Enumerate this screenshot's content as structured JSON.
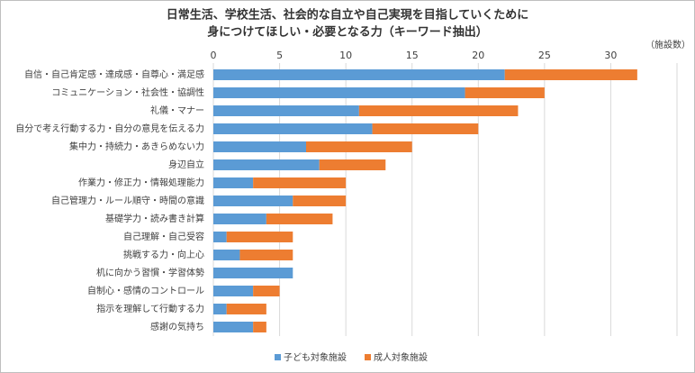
{
  "chart_data": {
    "type": "stacked-barh",
    "title": [
      "日常生活、学校生活、社会的な自立や自己実現を目指していくために",
      "身につけてほしい・必要となる力（キーワード抽出）"
    ],
    "x_label": "（施設数）",
    "categories": [
      "自信・自己肯定感・達成感・自尊心・満足感",
      "コミュニケーション・社会性・協調性",
      "礼儀・マナー",
      "自分で考え行動する力・自分の意見を伝える力",
      "集中力・持続力・あきらめない力",
      "身辺自立",
      "作業力・修正力・情報処理能力",
      "自己管理力・ルール順守・時間の意識",
      "基礎学力・読み書き計算",
      "自己理解・自己受容",
      "挑戦する力・向上心",
      "机に向かう習慣・学習体勢",
      "自制心・感情のコントロール",
      "指示を理解して行動する力",
      "感謝の気持ち"
    ],
    "series": [
      {
        "name": "子ども対象施設",
        "color": "#5b9bd5",
        "values": [
          22,
          19,
          11,
          12,
          7,
          8,
          3,
          6,
          4,
          1,
          2,
          6,
          3,
          1,
          3
        ]
      },
      {
        "name": "成人対象施設",
        "color": "#ed7d31",
        "values": [
          10,
          6,
          12,
          8,
          8,
          5,
          7,
          4,
          5,
          5,
          4,
          0,
          2,
          3,
          1
        ]
      }
    ],
    "xlim": [
      0,
      35
    ],
    "xticks": [
      0,
      5,
      10,
      15,
      20,
      25,
      30
    ],
    "grid": true,
    "legend": "bottom"
  }
}
